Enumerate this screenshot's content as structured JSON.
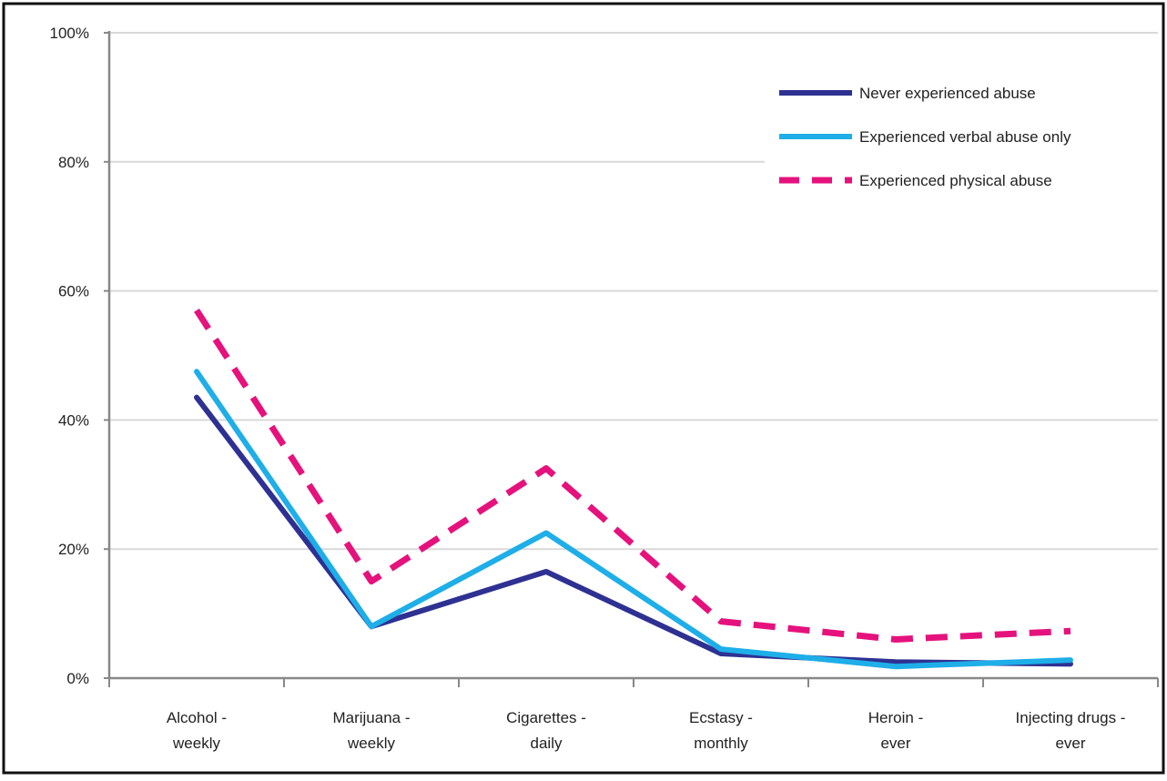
{
  "chart_data": {
    "type": "line",
    "title": "",
    "xlabel": "",
    "ylabel": "",
    "ylim": [
      0,
      100
    ],
    "y_ticks": [
      0,
      20,
      40,
      60,
      80,
      100
    ],
    "y_tick_labels": [
      "0%",
      "20%",
      "40%",
      "60%",
      "80%",
      "100%"
    ],
    "grid": true,
    "legend_position": "top-right",
    "categories": [
      [
        "Alcohol -",
        "weekly"
      ],
      [
        "Marijuana -",
        "weekly"
      ],
      [
        "Cigarettes -",
        "daily"
      ],
      [
        "Ecstasy -",
        "monthly"
      ],
      [
        "Heroin -",
        "ever"
      ],
      [
        "Injecting drugs -",
        "ever"
      ]
    ],
    "series": [
      {
        "name": "Never experienced abuse",
        "values": [
          43.5,
          8,
          16.5,
          3.8,
          2.5,
          2.2
        ],
        "color": "#2e3192",
        "style": "solid"
      },
      {
        "name": "Experienced verbal abuse only",
        "values": [
          47.5,
          8,
          22.5,
          4.5,
          1.8,
          2.8
        ],
        "color": "#1eaee8",
        "style": "solid"
      },
      {
        "name": "Experienced physical abuse",
        "values": [
          57,
          15,
          32.5,
          8.8,
          6,
          7.3
        ],
        "color": "#e5127d",
        "style": "dashed"
      }
    ]
  }
}
